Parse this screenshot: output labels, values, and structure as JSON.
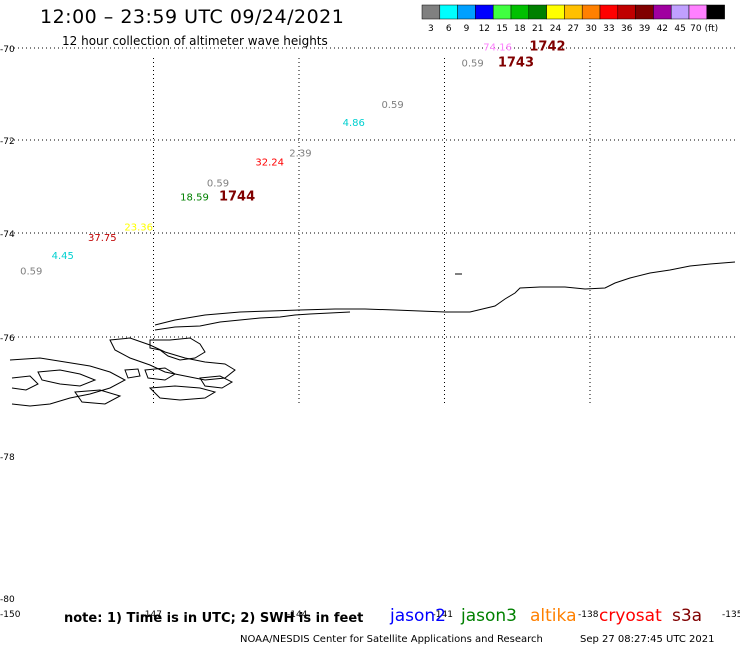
{
  "title": "12:00 – 23:59 UTC 09/24/2021",
  "subtitle": "12 hour collection of altimeter wave heights",
  "note": "note: 1) Time is in UTC; 2) SWH is in feet",
  "credit": "NOAA/NESDIS Center for Satellite Applications and Research",
  "timestamp": "Sep 27 08:27:45 UTC 2021",
  "color_scale": {
    "unit_label": "(ft)",
    "bins": [
      {
        "label": "3",
        "color": "#808080"
      },
      {
        "label": "6",
        "color": "#00ffff"
      },
      {
        "label": "9",
        "color": "#00a0ff"
      },
      {
        "label": "12",
        "color": "#0000ff"
      },
      {
        "label": "15",
        "color": "#40ff40"
      },
      {
        "label": "18",
        "color": "#00c000"
      },
      {
        "label": "21",
        "color": "#008000"
      },
      {
        "label": "24",
        "color": "#ffff00"
      },
      {
        "label": "27",
        "color": "#ffc000"
      },
      {
        "label": "30",
        "color": "#ff8000"
      },
      {
        "label": "33",
        "color": "#ff0000"
      },
      {
        "label": "36",
        "color": "#c00000"
      },
      {
        "label": "39",
        "color": "#800000"
      },
      {
        "label": "42",
        "color": "#a000a0"
      },
      {
        "label": "45",
        "color": "#c0a0ff"
      },
      {
        "label": "70",
        "color": "#ff80ff"
      },
      {
        "label": "",
        "color": "#000000"
      }
    ]
  },
  "lat_labels": [
    "-70",
    "-72",
    "-74",
    "-76",
    "-78",
    "-80"
  ],
  "lon_labels": [
    "-150",
    "-147",
    "-144",
    "-141",
    "-138",
    "-135"
  ],
  "satellites": [
    {
      "name": "jason2",
      "color": "#0000ff"
    },
    {
      "name": "jason3",
      "color": "#008000"
    },
    {
      "name": "altika",
      "color": "#ff8000"
    },
    {
      "name": "cryosat",
      "color": "#ff0000"
    },
    {
      "name": "s3a",
      "color": "#800000"
    }
  ],
  "observations": [
    {
      "text": "74.16",
      "color": "#ff80ff",
      "lat": -70.05,
      "lon": -140.2
    },
    {
      "text": "1742",
      "color": "#800000",
      "lat": -70.05,
      "lon": -139.25,
      "bold": true
    },
    {
      "text": "0.59",
      "color": "#808080",
      "lat": -70.4,
      "lon": -140.65
    },
    {
      "text": "1743",
      "color": "#800000",
      "lat": -70.4,
      "lon": -139.9,
      "bold": true
    },
    {
      "text": "0.59",
      "color": "#808080",
      "lat": -71.3,
      "lon": -142.3
    },
    {
      "text": "4.86",
      "color": "#00d0d0",
      "lat": -71.7,
      "lon": -143.1
    },
    {
      "text": "2.39",
      "color": "#808080",
      "lat": -72.35,
      "lon": -144.2
    },
    {
      "text": "32.24",
      "color": "#ff0000",
      "lat": -72.55,
      "lon": -144.9
    },
    {
      "text": "0.59",
      "color": "#808080",
      "lat": -73.0,
      "lon": -145.9
    },
    {
      "text": "18.59",
      "color": "#008000",
      "lat": -73.3,
      "lon": -146.45
    },
    {
      "text": "1744",
      "color": "#800000",
      "lat": -73.3,
      "lon": -145.65,
      "bold": true
    },
    {
      "text": "23.36",
      "color": "#ffff00",
      "lat": -73.95,
      "lon": -147.6
    },
    {
      "text": "37.75",
      "color": "#c00000",
      "lat": -74.15,
      "lon": -148.35
    },
    {
      "text": "4.45",
      "color": "#00d0d0",
      "lat": -74.5,
      "lon": -149.1
    },
    {
      "text": "0.59",
      "color": "#808080",
      "lat": -74.8,
      "lon": -149.75
    }
  ]
}
